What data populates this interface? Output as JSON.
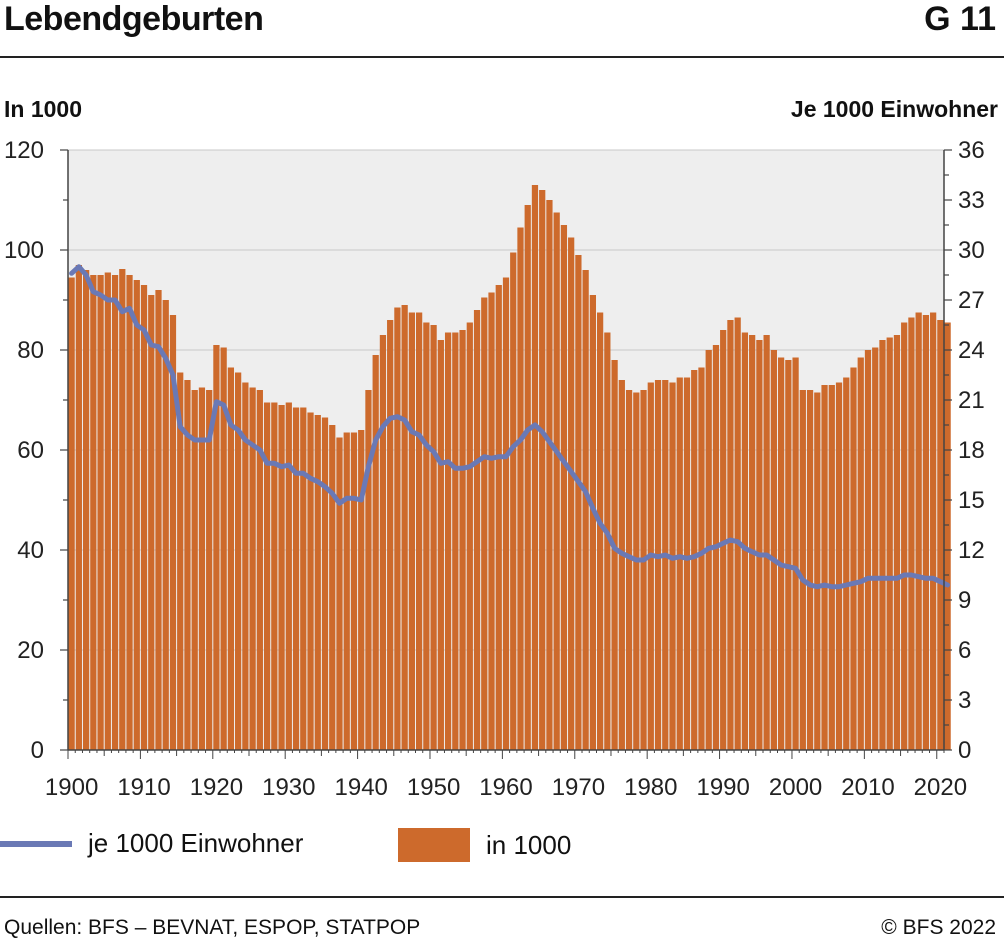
{
  "header": {
    "title": "Lebendgeburten",
    "code": "G 11"
  },
  "axes": {
    "left_unit": "In 1000",
    "right_unit": "Je 1000 Einwohner"
  },
  "legend": {
    "line_label": "je 1000 Einwohner",
    "bar_label": "in 1000"
  },
  "footer": {
    "source": "Quellen: BFS – BEVNAT, ESPOP, STATPOP",
    "copyright": "© BFS 2022"
  },
  "colors": {
    "bar": "#cd6a2c",
    "line": "#6a79b5",
    "plot_bg": "#eeeeee",
    "grid": "#c8c8c8"
  },
  "chart_data": {
    "type": "bar",
    "title": "Lebendgeburten",
    "x_start": 1900,
    "x_end": 2021,
    "x_ticks": [
      1900,
      1910,
      1920,
      1930,
      1940,
      1950,
      1960,
      1970,
      1980,
      1990,
      2000,
      2010,
      2020
    ],
    "ylim_left": [
      0,
      120
    ],
    "y_ticks_left": [
      0,
      20,
      40,
      60,
      80,
      100,
      120
    ],
    "ylim_right": [
      0,
      36
    ],
    "y_ticks_right": [
      0,
      3,
      6,
      9,
      12,
      15,
      18,
      21,
      24,
      27,
      30,
      33,
      36
    ],
    "grid": true,
    "series": [
      {
        "name": "in 1000",
        "axis": "left",
        "kind": "bar",
        "values": [
          94.5,
          97.0,
          96.0,
          95.0,
          95.0,
          95.5,
          95.0,
          96.2,
          95.0,
          94.0,
          93.0,
          91.0,
          92.0,
          90.0,
          87.0,
          75.5,
          74.0,
          72.0,
          72.5,
          72.0,
          81.0,
          80.5,
          76.5,
          75.5,
          73.5,
          72.5,
          72.0,
          69.5,
          69.5,
          69.0,
          69.5,
          68.5,
          68.5,
          67.5,
          67.0,
          66.5,
          65.0,
          62.5,
          63.5,
          63.5,
          64.0,
          72.0,
          79.0,
          83.0,
          86.0,
          88.5,
          89.0,
          87.5,
          87.5,
          85.5,
          85.0,
          82.0,
          83.5,
          83.5,
          84.0,
          85.5,
          88.0,
          90.5,
          91.5,
          93.0,
          94.5,
          99.5,
          104.5,
          109.0,
          113.0,
          112.0,
          110.0,
          107.5,
          105.0,
          102.5,
          99.0,
          96.0,
          91.0,
          87.5,
          83.5,
          78.0,
          74.0,
          72.0,
          71.5,
          72.0,
          73.5,
          74.0,
          74.0,
          73.5,
          74.5,
          74.5,
          76.0,
          76.5,
          80.0,
          81.0,
          84.0,
          86.0,
          86.5,
          83.5,
          83.0,
          82.0,
          83.0,
          80.0,
          78.5,
          78.0,
          78.5,
          72.0,
          72.0,
          71.5,
          73.0,
          73.0,
          73.5,
          74.5,
          76.5,
          78.5,
          80.0,
          80.5,
          82.0,
          82.5,
          83.0,
          85.5,
          86.5,
          87.5,
          87.0,
          87.5,
          86.0,
          85.5
        ]
      },
      {
        "name": "je 1000 Einwohner",
        "axis": "right",
        "kind": "line",
        "values": [
          28.6,
          29.0,
          28.5,
          27.5,
          27.3,
          27.0,
          27.0,
          26.3,
          26.5,
          25.5,
          25.2,
          24.3,
          24.2,
          23.5,
          22.5,
          19.4,
          18.9,
          18.6,
          18.6,
          18.6,
          20.9,
          20.7,
          19.5,
          19.2,
          18.6,
          18.3,
          18.0,
          17.2,
          17.2,
          17.0,
          17.1,
          16.6,
          16.6,
          16.3,
          16.1,
          15.8,
          15.4,
          14.8,
          15.1,
          15.1,
          15.0,
          17.0,
          18.6,
          19.4,
          19.9,
          20.0,
          19.8,
          19.1,
          18.9,
          18.3,
          17.9,
          17.2,
          17.3,
          16.9,
          16.9,
          17.0,
          17.3,
          17.6,
          17.5,
          17.6,
          17.6,
          18.2,
          18.6,
          19.2,
          19.5,
          19.1,
          18.5,
          17.9,
          17.3,
          16.7,
          16.1,
          15.5,
          14.5,
          13.6,
          13.0,
          12.1,
          11.8,
          11.6,
          11.4,
          11.4,
          11.7,
          11.6,
          11.7,
          11.5,
          11.6,
          11.5,
          11.6,
          11.8,
          12.1,
          12.2,
          12.4,
          12.6,
          12.5,
          12.1,
          11.9,
          11.7,
          11.7,
          11.4,
          11.1,
          11.0,
          10.9,
          10.2,
          9.9,
          9.8,
          9.9,
          9.8,
          9.8,
          9.9,
          10.0,
          10.1,
          10.3,
          10.3,
          10.3,
          10.3,
          10.3,
          10.5,
          10.5,
          10.4,
          10.3,
          10.3,
          10.1,
          9.9
        ]
      }
    ]
  }
}
